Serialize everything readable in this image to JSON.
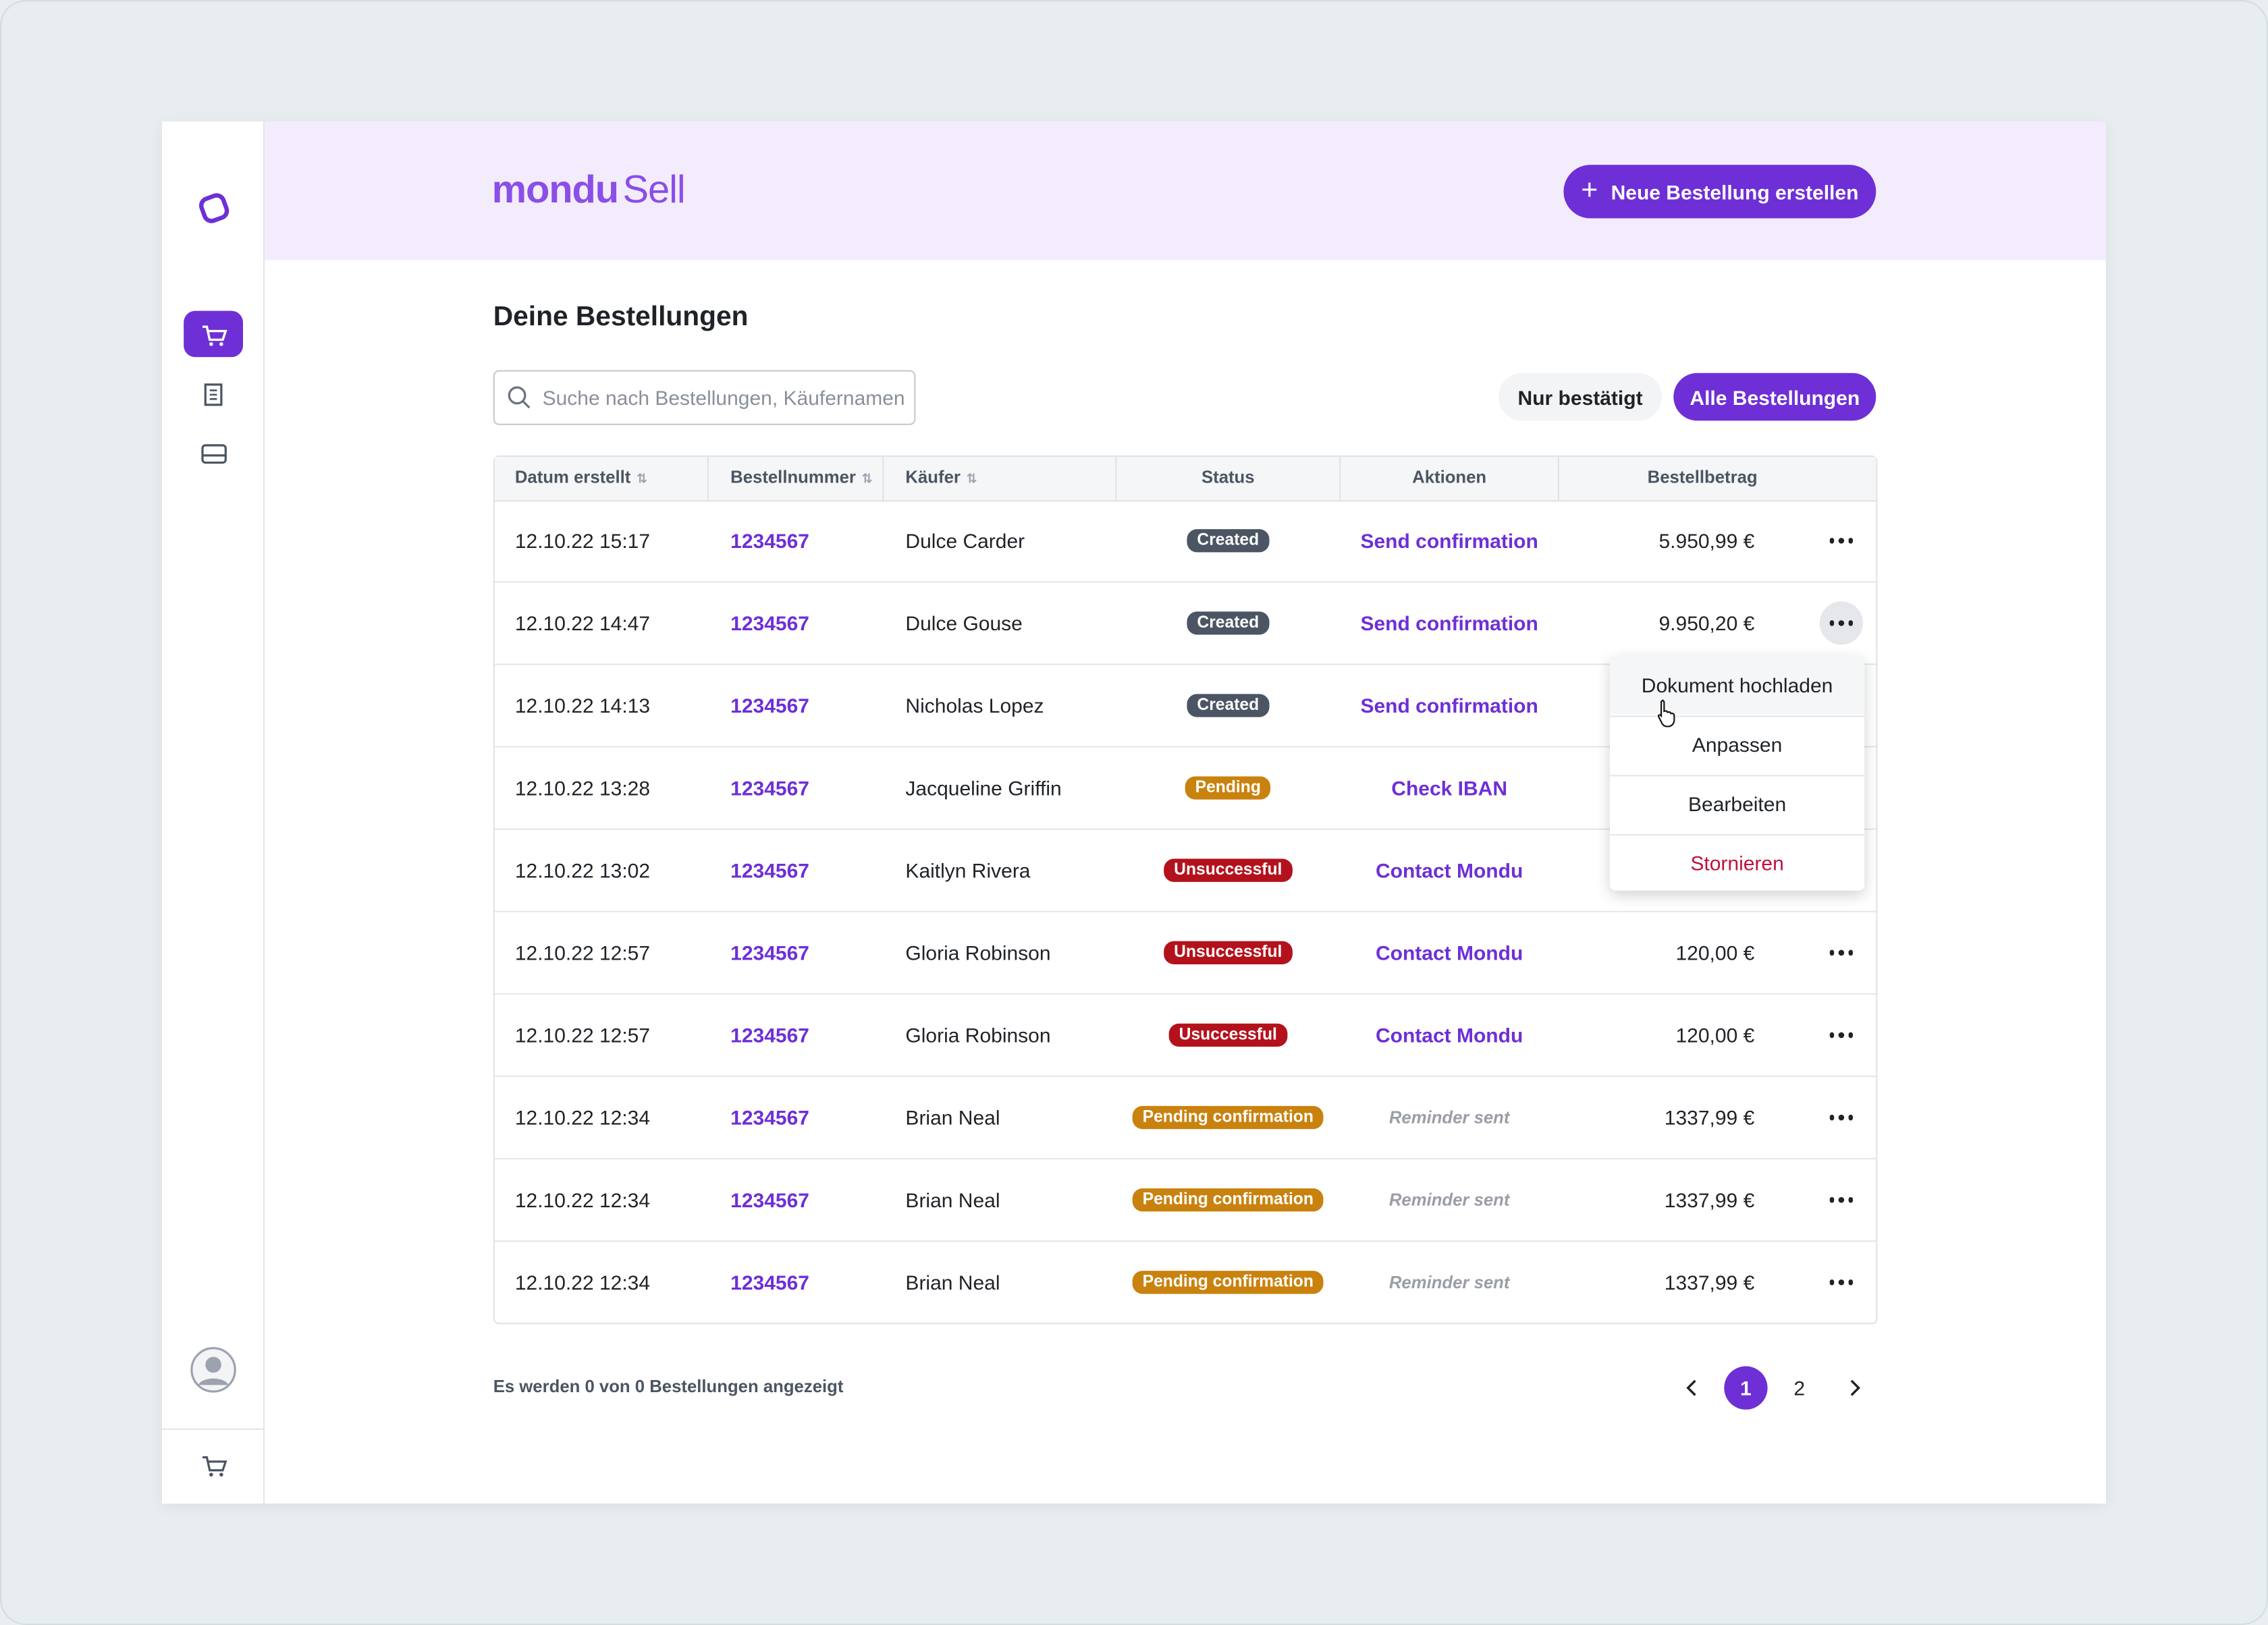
{
  "header": {
    "logo_main": "mondu",
    "logo_sub": "Sell",
    "button": "Neue Bestellung erstellen"
  },
  "page_title": "Deine Bestellungen",
  "search_placeholder": "Suche nach Bestellungen, Käufernamen",
  "filters": [
    "Nur bestätigt",
    "Alle Bestellungen"
  ],
  "table": {
    "columns": [
      "Datum erstellt",
      "Bestellnummer",
      "Käufer",
      "Status",
      "Aktionen",
      "Bestellbetrag"
    ],
    "rows": [
      {
        "date": "12.10.22 15:17",
        "order": "1234567",
        "buyer": "Dulce Carder",
        "status": "Created",
        "status_color": "#4b5563",
        "action": "Send confirmation",
        "action_color": "#6e2fd6",
        "amount": "5.950,99 €"
      },
      {
        "date": "12.10.22 14:47",
        "order": "1234567",
        "buyer": "Dulce Gouse",
        "status": "Created",
        "status_color": "#4b5563",
        "action": "Send confirmation",
        "action_color": "#6e2fd6",
        "amount": "9.950,20 €"
      },
      {
        "date": "12.10.22 14:13",
        "order": "1234567",
        "buyer": "Nicholas Lopez",
        "status": "Created",
        "status_color": "#4b5563",
        "action": "Send confirmation",
        "action_color": "#6e2fd6"
      },
      {
        "date": "12.10.22 13:28",
        "order": "1234567",
        "buyer": "Jacqueline Griffin",
        "status": "Pending",
        "status_color": "#c9820e",
        "action": "Check IBAN",
        "action_color": "#6e2fd6"
      },
      {
        "date": "12.10.22 13:02",
        "order": "1234567",
        "buyer": "Kaitlyn Rivera",
        "status": "Unsuccessful",
        "status_color": "#b3121c",
        "action": "Contact Mondu",
        "action_color": "#6e2fd6"
      },
      {
        "date": "12.10.22 12:57",
        "order": "1234567",
        "buyer": "Gloria Robinson",
        "status": "Unsuccessful",
        "status_color": "#b3121c",
        "action": "Contact Mondu",
        "action_color": "#6e2fd6",
        "amount": "120,00 €"
      },
      {
        "date": "12.10.22 12:57",
        "order": "1234567",
        "buyer": "Gloria Robinson",
        "status": "Usuccessful",
        "status_color": "#b3121c",
        "action": "Contact Mondu",
        "action_color": "#6e2fd6",
        "amount": "120,00 €"
      },
      {
        "date": "12.10.22 12:34",
        "order": "1234567",
        "buyer": "Brian Neal",
        "status": "Pending confirmation",
        "status_color": "#c9820e",
        "action": "Reminder sent",
        "action_color": "#9a9ea6",
        "amount": "1337,99 €"
      },
      {
        "date": "12.10.22 12:34",
        "order": "1234567",
        "buyer": "Brian Neal",
        "status": "Pending confirmation",
        "status_color": "#c9820e",
        "action": "Reminder sent",
        "action_color": "#9a9ea6",
        "amount": "1337,99 €"
      },
      {
        "date": "12.10.22 12:34",
        "order": "1234567",
        "buyer": "Brian Neal",
        "status": "Pending confirmation",
        "status_color": "#c9820e",
        "action": "Reminder sent",
        "action_color": "#9a9ea6",
        "amount": "1337,99 €"
      }
    ]
  },
  "dropdown": [
    "Dokument hochladen",
    "Anpassen",
    "Bearbeiten",
    "Stornieren"
  ],
  "footer_text": "Es werden 0 von 0 Bestellungen angezeigt",
  "pagination": [
    "1",
    "2"
  ]
}
